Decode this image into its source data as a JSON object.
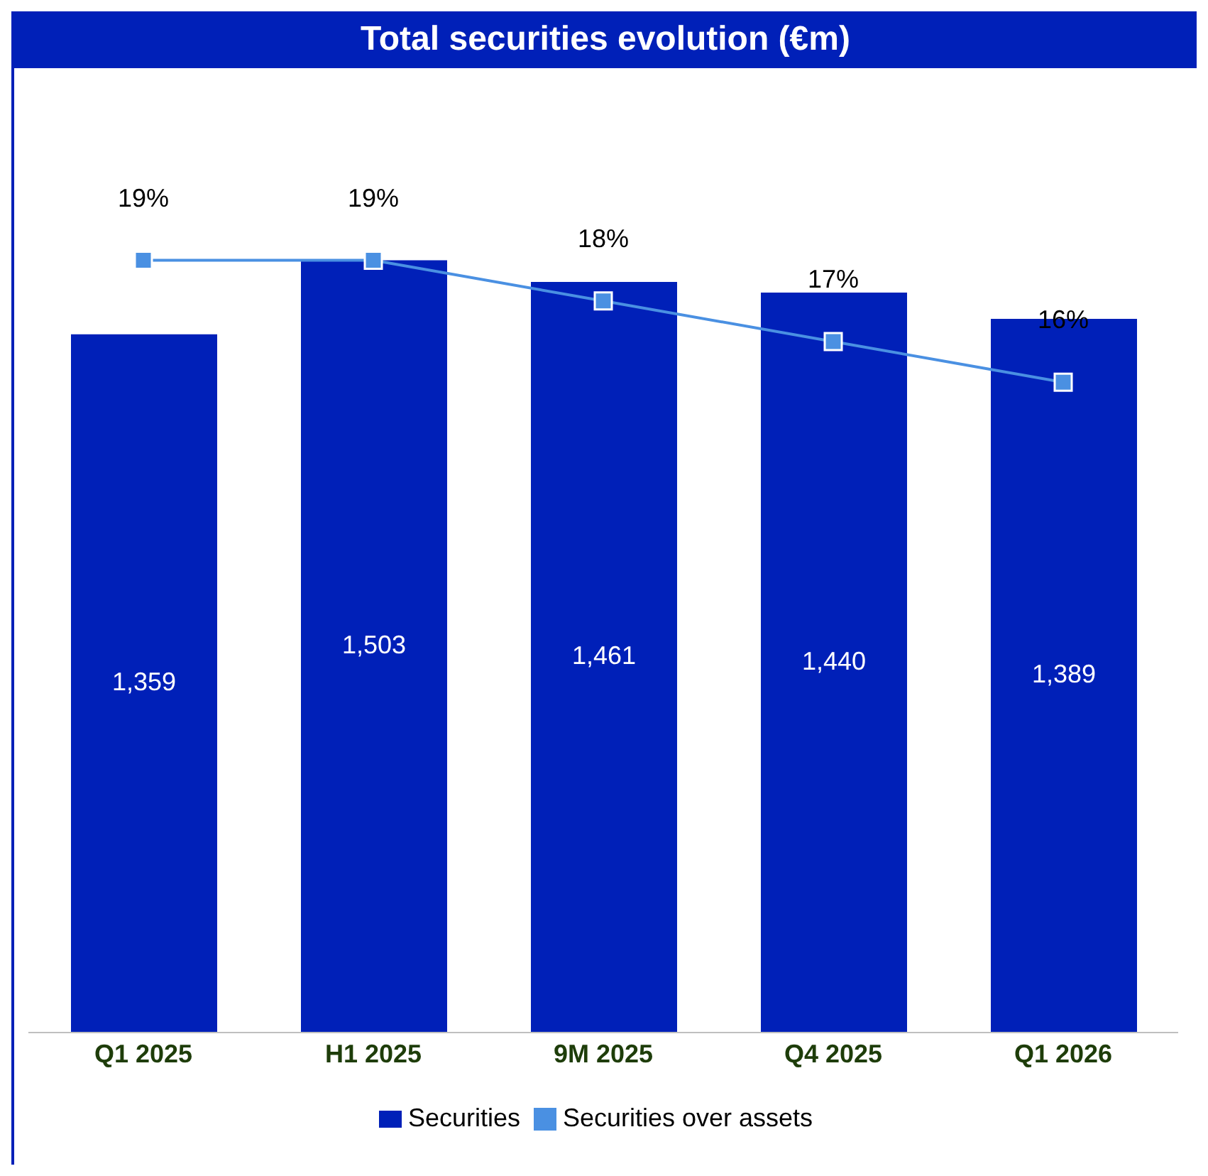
{
  "chart_data": {
    "type": "bar",
    "title": "Total securities evolution (€m)",
    "categories": [
      "Q1 2025",
      "H1 2025",
      "9M 2025",
      "Q4 2025",
      "Q1 2026"
    ],
    "series": [
      {
        "name": "Securities",
        "color": "#0020b8",
        "values": [
          1359,
          1503,
          1461,
          1440,
          1389
        ],
        "value_labels": [
          "1,359",
          "1,503",
          "1,461",
          "1,440",
          "1,389"
        ]
      },
      {
        "name": "Securities over assets",
        "type": "line",
        "axis": "y2",
        "color": "#4a90e2",
        "marker": "square",
        "values": [
          19,
          19,
          18,
          17,
          16
        ],
        "value_labels": [
          "19%",
          "19%",
          "18%",
          "17%",
          "16%"
        ]
      }
    ],
    "data_labels": true,
    "legend": "bottom",
    "grid": false,
    "tick_labels": "x"
  }
}
